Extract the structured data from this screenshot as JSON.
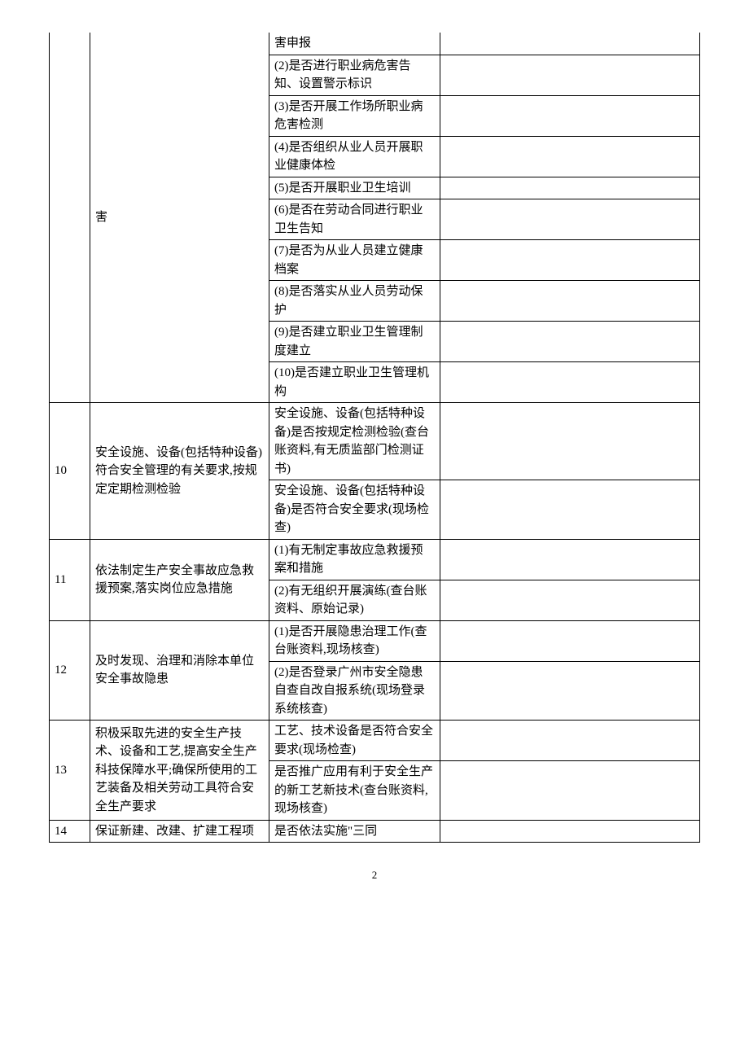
{
  "rows": [
    {
      "num": "",
      "desc": "害",
      "items": [
        "害申报",
        "(2)是否进行职业病危害告知、设置警示标识",
        "(3)是否开展工作场所职业病危害检测",
        "(4)是否组织从业人员开展职业健康体检",
        "(5)是否开展职业卫生培训",
        "(6)是否在劳动合同进行职业卫生告知",
        "(7)是否为从业人员建立健康档案",
        "(8)是否落实从业人员劳动保护",
        "(9)是否建立职业卫生管理制度建立",
        "(10)是否建立职业卫生管理机构"
      ]
    },
    {
      "num": "10",
      "desc": "安全设施、设备(包括特种设备)符合安全管理的有关要求,按规定定期检测检验",
      "items": [
        "安全设施、设备(包括特种设备)是否按规定检测检验(查台账资料,有无质监部门检测证书)",
        "安全设施、设备(包括特种设备)是否符合安全要求(现场检查)"
      ]
    },
    {
      "num": "11",
      "desc": "依法制定生产安全事故应急救援预案,落实岗位应急措施",
      "items": [
        "(1)有无制定事故应急救援预案和措施",
        "(2)有无组织开展演练(查台账资料、原始记录)"
      ]
    },
    {
      "num": "12",
      "desc": "及时发现、治理和消除本单位安全事故隐患",
      "items": [
        "(1)是否开展隐患治理工作(查台账资料,现场核查)",
        "(2)是否登录广州市安全隐患自查自改自报系统(现场登录系统核查)"
      ]
    },
    {
      "num": "13",
      "desc": "积极采取先进的安全生产技术、设备和工艺,提高安全生产科技保障水平;确保所使用的工艺装备及相关劳动工具符合安全生产要求",
      "items": [
        "工艺、技术设备是否符合安全要求(现场检查)",
        "是否推广应用有利于安全生产的新工艺新技术(查台账资料,现场核查)"
      ]
    },
    {
      "num": "14",
      "desc": "保证新建、改建、扩建工程项",
      "items": [
        "是否依法实施\"三同"
      ]
    }
  ],
  "page_number": "2"
}
